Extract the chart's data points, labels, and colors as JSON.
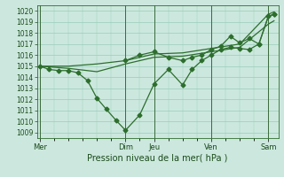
{
  "xlabel": "Pression niveau de la mer( hPa )",
  "background_color": "#cce8de",
  "plot_bg_color": "#cce8de",
  "grid_color": "#99ccbb",
  "line_color": "#2d6e2d",
  "ylim": [
    1008.5,
    1020.5
  ],
  "yticks": [
    1009,
    1010,
    1011,
    1012,
    1013,
    1014,
    1015,
    1016,
    1017,
    1018,
    1019,
    1020
  ],
  "x_day_labels": [
    "Mer",
    "",
    "Dim",
    "Jeu",
    "",
    "Ven",
    "",
    "Sam"
  ],
  "x_day_positions": [
    0,
    1.5,
    3,
    4,
    5,
    6,
    7,
    8
  ],
  "vline_positions": [
    0,
    3,
    4,
    6,
    8
  ],
  "series_marked1_x": [
    0,
    0.33,
    0.67,
    1.0,
    1.33,
    1.67,
    2.0,
    2.33,
    2.67,
    3.0,
    3.5,
    4.0,
    4.5,
    5.0,
    5.33,
    5.67,
    6.0,
    6.33,
    6.67,
    7.0,
    7.33,
    7.67,
    8.0,
    8.2
  ],
  "series_marked1_y": [
    1015.0,
    1014.7,
    1014.6,
    1014.6,
    1014.4,
    1013.7,
    1012.1,
    1011.1,
    1010.1,
    1009.2,
    1010.6,
    1013.4,
    1014.7,
    1013.3,
    1014.7,
    1015.5,
    1016.0,
    1016.5,
    1016.7,
    1016.6,
    1016.5,
    1017.0,
    1019.5,
    1019.7
  ],
  "series_marked2_x": [
    3.0,
    3.5,
    4.0,
    4.5,
    5.0,
    5.33,
    5.67,
    6.0,
    6.33,
    6.67,
    7.0,
    7.33,
    7.67,
    8.0,
    8.2
  ],
  "series_marked2_y": [
    1015.5,
    1016.0,
    1016.3,
    1015.8,
    1015.5,
    1015.8,
    1016.0,
    1016.5,
    1016.8,
    1017.7,
    1017.1,
    1017.5,
    1017.0,
    1019.5,
    1019.7
  ],
  "envelope_low_x": [
    0,
    1.0,
    2.0,
    3.0,
    4.0,
    5.0,
    6.0,
    7.0,
    8.0,
    8.2
  ],
  "envelope_low_y": [
    1015.0,
    1014.8,
    1014.5,
    1015.2,
    1015.8,
    1015.9,
    1016.3,
    1016.7,
    1018.8,
    1019.1
  ],
  "envelope_high_x": [
    0,
    1.0,
    2.0,
    3.0,
    4.0,
    5.0,
    6.0,
    7.0,
    8.0,
    8.2
  ],
  "envelope_high_y": [
    1015.0,
    1015.0,
    1015.2,
    1015.5,
    1016.1,
    1016.2,
    1016.6,
    1017.0,
    1019.7,
    1019.9
  ],
  "xlim": [
    -0.1,
    8.35
  ],
  "marker_size": 2.5,
  "linewidth": 0.9
}
